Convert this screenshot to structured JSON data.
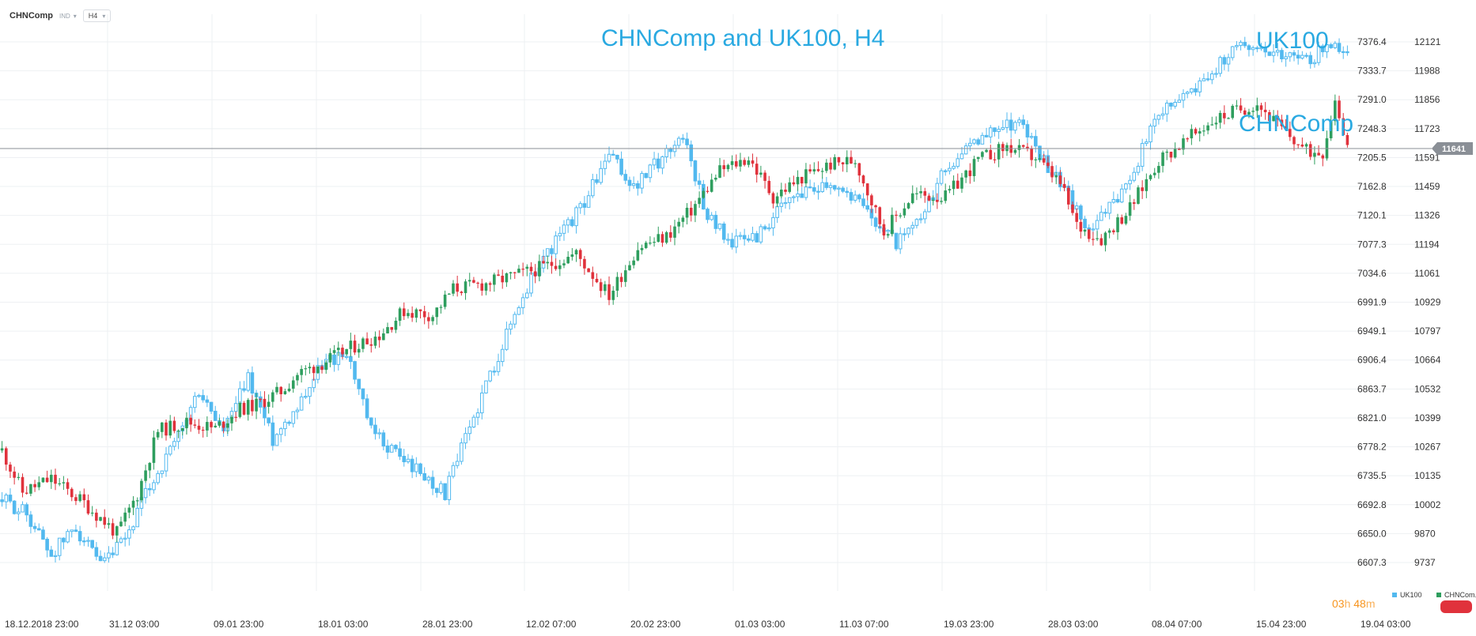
{
  "toolbar": {
    "symbol": "CHNComp",
    "group": "IND",
    "timeframe": "H4"
  },
  "title": "CHNComp and UK100, H4",
  "annotations": {
    "uk100": "UK100",
    "chncomp": "CHNComp"
  },
  "price_tag": "11641",
  "timer": {
    "hours": "03",
    "h": "h",
    "minutes": "48",
    "m": "m"
  },
  "legend": [
    {
      "label": "UK100",
      "color": "#52b9ef"
    },
    {
      "label": "CHNCom..",
      "color": "#2e9e5e"
    }
  ],
  "colors": {
    "up": "#2e9e5e",
    "down": "#e0323c",
    "uk100": "#52b9ef",
    "grid": "#eef0f3",
    "line": "#8a8f96"
  },
  "chart_data": {
    "type": "candlestick",
    "title": "CHNComp and UK100, H4",
    "x_ticks": [
      "18.12.2018  23:00",
      "31.12  03:00",
      "09.01  23:00",
      "18.01  03:00",
      "28.01  23:00",
      "12.02  07:00",
      "20.02  23:00",
      "01.03  03:00",
      "11.03  07:00",
      "19.03  23:00",
      "28.03  03:00",
      "08.04  07:00",
      "15.04  23:00",
      "19.04  03:00"
    ],
    "uk100_axis": {
      "ticks": [
        "7376.4",
        "7333.7",
        "7291.0",
        "7248.3",
        "7205.5",
        "7162.8",
        "7120.1",
        "7077.3",
        "7034.6",
        "6991.9",
        "6949.1",
        "6906.4",
        "6863.7",
        "6821.0",
        "6778.2",
        "6735.5",
        "6692.8",
        "6650.0",
        "6607.3"
      ],
      "range": [
        6607.3,
        7376.4
      ]
    },
    "chncomp_axis": {
      "ticks": [
        "12121",
        "11988",
        "11856",
        "11723",
        "11591",
        "11459",
        "11326",
        "11194",
        "11061",
        "10929",
        "10797",
        "10664",
        "10532",
        "10399",
        "10267",
        "10135",
        "10002",
        "9870",
        "9737"
      ],
      "range": [
        9737,
        12121
      ]
    },
    "current_chncomp": 11641,
    "series": [
      {
        "name": "CHNComp",
        "anchors": [
          [
            0,
            10250
          ],
          [
            5,
            10060
          ],
          [
            12,
            10120
          ],
          [
            20,
            10010
          ],
          [
            28,
            9870
          ],
          [
            33,
            10050
          ],
          [
            38,
            10340
          ],
          [
            45,
            10380
          ],
          [
            52,
            10350
          ],
          [
            58,
            10440
          ],
          [
            62,
            10460
          ],
          [
            68,
            10520
          ],
          [
            72,
            10600
          ],
          [
            78,
            10650
          ],
          [
            85,
            10720
          ],
          [
            92,
            10780
          ],
          [
            98,
            10890
          ],
          [
            105,
            10870
          ],
          [
            110,
            10990
          ],
          [
            117,
            11010
          ],
          [
            125,
            11050
          ],
          [
            132,
            11090
          ],
          [
            140,
            11150
          ],
          [
            148,
            10960
          ],
          [
            155,
            11180
          ],
          [
            162,
            11230
          ],
          [
            168,
            11350
          ],
          [
            175,
            11530
          ],
          [
            182,
            11590
          ],
          [
            188,
            11410
          ],
          [
            195,
            11500
          ],
          [
            202,
            11560
          ],
          [
            208,
            11580
          ],
          [
            215,
            11250
          ],
          [
            222,
            11420
          ],
          [
            230,
            11410
          ],
          [
            238,
            11580
          ],
          [
            245,
            11640
          ],
          [
            252,
            11590
          ],
          [
            258,
            11470
          ],
          [
            262,
            11280
          ],
          [
            268,
            11220
          ],
          [
            275,
            11360
          ],
          [
            282,
            11580
          ],
          [
            288,
            11660
          ],
          [
            295,
            11760
          ],
          [
            300,
            11800
          ],
          [
            306,
            11840
          ],
          [
            312,
            11720
          ],
          [
            318,
            11620
          ],
          [
            322,
            11620
          ],
          [
            325,
            11860
          ],
          [
            328,
            11650
          ]
        ],
        "seed": 11
      },
      {
        "name": "UK100",
        "anchors": [
          [
            0,
            6700
          ],
          [
            6,
            6680
          ],
          [
            12,
            6620
          ],
          [
            18,
            6660
          ],
          [
            24,
            6600
          ],
          [
            30,
            6640
          ],
          [
            36,
            6720
          ],
          [
            42,
            6780
          ],
          [
            48,
            6860
          ],
          [
            54,
            6800
          ],
          [
            60,
            6880
          ],
          [
            66,
            6790
          ],
          [
            72,
            6840
          ],
          [
            78,
            6900
          ],
          [
            84,
            6920
          ],
          [
            90,
            6800
          ],
          [
            96,
            6770
          ],
          [
            102,
            6740
          ],
          [
            108,
            6710
          ],
          [
            113,
            6790
          ],
          [
            118,
            6870
          ],
          [
            124,
            6960
          ],
          [
            130,
            7040
          ],
          [
            136,
            7090
          ],
          [
            142,
            7140
          ],
          [
            148,
            7210
          ],
          [
            154,
            7160
          ],
          [
            160,
            7200
          ],
          [
            166,
            7240
          ],
          [
            172,
            7120
          ],
          [
            178,
            7080
          ],
          [
            184,
            7090
          ],
          [
            190,
            7130
          ],
          [
            196,
            7160
          ],
          [
            202,
            7170
          ],
          [
            207,
            7150
          ],
          [
            212,
            7120
          ],
          [
            218,
            7080
          ],
          [
            224,
            7110
          ],
          [
            230,
            7190
          ],
          [
            236,
            7220
          ],
          [
            242,
            7250
          ],
          [
            248,
            7260
          ],
          [
            253,
            7210
          ],
          [
            258,
            7170
          ],
          [
            264,
            7100
          ],
          [
            270,
            7130
          ],
          [
            276,
            7190
          ],
          [
            282,
            7270
          ],
          [
            288,
            7300
          ],
          [
            294,
            7320
          ],
          [
            300,
            7370
          ],
          [
            306,
            7370
          ],
          [
            312,
            7360
          ],
          [
            318,
            7350
          ],
          [
            324,
            7370
          ],
          [
            328,
            7365
          ]
        ],
        "seed": 29
      }
    ]
  }
}
